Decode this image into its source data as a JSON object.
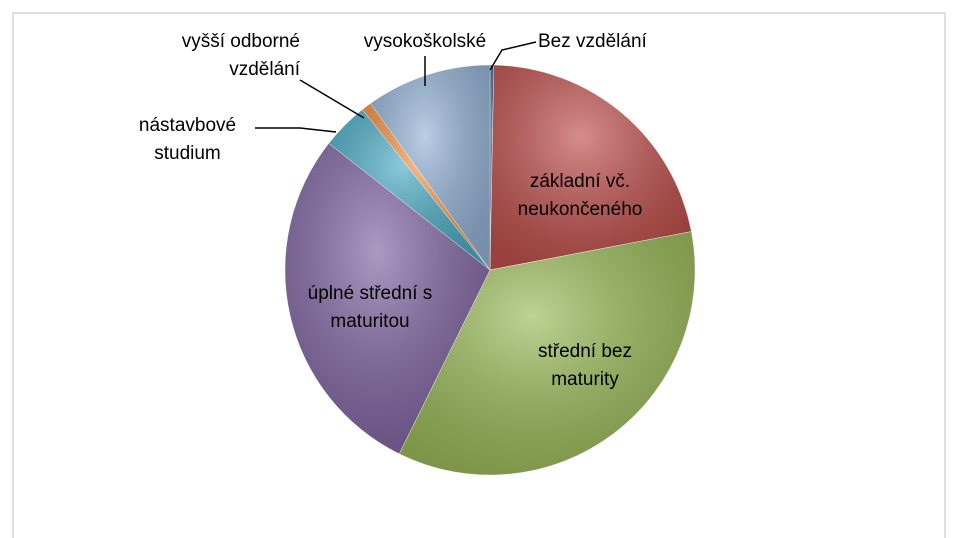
{
  "chart_data": {
    "type": "pie",
    "categories": [
      "Bez vzdělání",
      "základní vč. neukončeného",
      "střední bez maturity",
      "úplné střední s maturitou",
      "nástavbové studium",
      "vyšší odborné vzdělání",
      "vysokoškolské"
    ],
    "values": [
      0.3,
      21.7,
      35.3,
      28.3,
      3.7,
      0.8,
      9.9
    ],
    "colors": [
      "#2e5c8a",
      "#c0504d",
      "#9bbb59",
      "#8064a2",
      "#4bacc6",
      "#f79646",
      "#95b3d7"
    ]
  }
}
